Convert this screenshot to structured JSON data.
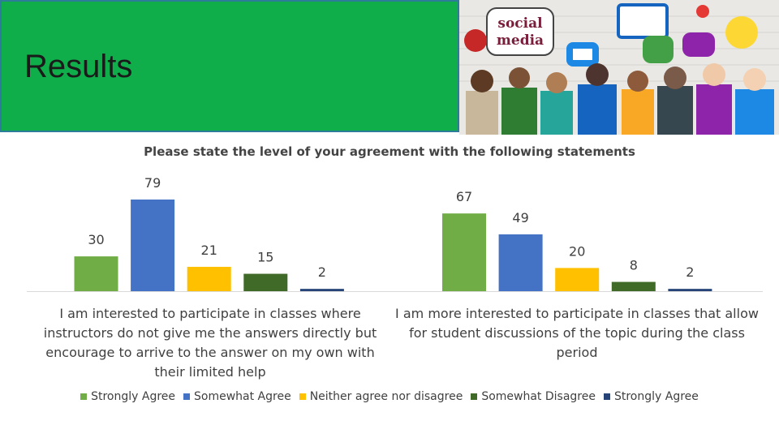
{
  "slide": {
    "title": "Results"
  },
  "photo": {
    "badge_line1": "social",
    "badge_line2": "media"
  },
  "colors": {
    "header_bg": "#0fae4b",
    "header_border": "#2d7d9a"
  },
  "chart_data": {
    "type": "bar",
    "title": "Please state the level of your agreement with the following statements",
    "categories": [
      "I am interested to participate in classes where instructors do not give me the answers directly but encourage to arrive to the answer on my own with their limited help",
      "I am more interested to participate in classes that allow for student discussions of the topic during the class period"
    ],
    "series": [
      {
        "name": "Strongly Agree",
        "color": "#70ad47",
        "values": [
          30,
          67
        ]
      },
      {
        "name": "Somewhat Agree",
        "color": "#4472c4",
        "values": [
          79,
          49
        ]
      },
      {
        "name": "Neither agree nor disagree",
        "color": "#ffc000",
        "values": [
          21,
          20
        ]
      },
      {
        "name": "Somewhat Disagree",
        "color": "#3f6a28",
        "values": [
          15,
          8
        ]
      },
      {
        "name": "Strongly Agree",
        "color": "#264478",
        "values": [
          2,
          2
        ]
      }
    ],
    "ylim": [
      0,
      79
    ],
    "grid": false,
    "legend_position": "bottom",
    "data_labels": true
  }
}
